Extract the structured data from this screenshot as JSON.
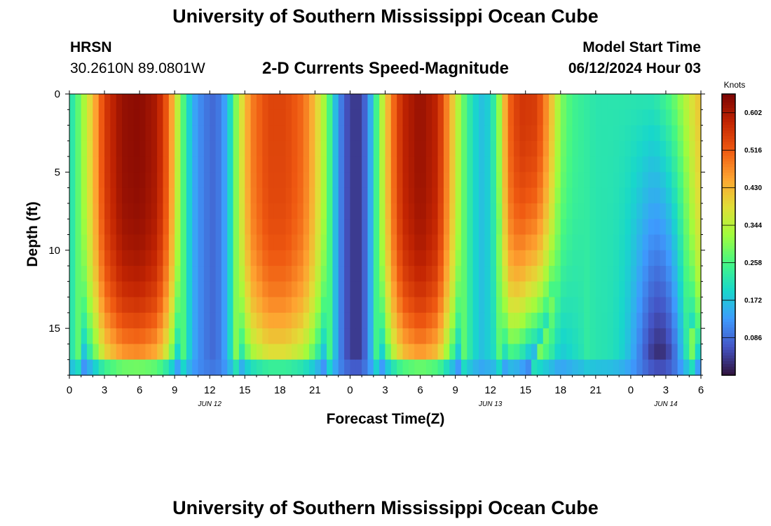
{
  "header": {
    "title": "University of Southern Mississippi Ocean Cube",
    "station": "HRSN",
    "coords": "30.2610N  89.0801W",
    "subtitle": "2-D Currents Speed-Magnitude",
    "model_label": "Model Start Time",
    "model_time": "06/12/2024 Hour 03"
  },
  "footer": {
    "title": "University of Southern Mississippi Ocean Cube"
  },
  "chart_data": {
    "type": "heatmap",
    "title": "2-D Currents Speed-Magnitude",
    "xlabel": "Forecast Time(Z)",
    "ylabel": "Depth (ft)",
    "colorbar_label": "Knots",
    "x_range_hours": [
      0,
      54
    ],
    "x_tick_hours": [
      0,
      3,
      6,
      9,
      12,
      15,
      18,
      21,
      24,
      27,
      30,
      33,
      36,
      39,
      42,
      45,
      48,
      51,
      54
    ],
    "x_tick_labels": [
      "0",
      "3",
      "6",
      "9",
      "12",
      "15",
      "18",
      "21",
      "0",
      "3",
      "6",
      "9",
      "12",
      "15",
      "18",
      "21",
      "0",
      "3",
      "6"
    ],
    "date_labels": [
      {
        "hour": 12,
        "text": "JUN 12"
      },
      {
        "hour": 36,
        "text": "JUN 13"
      },
      {
        "hour": 51,
        "text": "JUN 14"
      }
    ],
    "y_range_ft": [
      0,
      18
    ],
    "y_ticks": [
      0,
      5,
      10,
      15
    ],
    "y_tick_labels": [
      "0",
      "5",
      "10",
      "15"
    ],
    "color_range": [
      0,
      0.645
    ],
    "colorbar_ticks": [
      0.602,
      0.516,
      0.43,
      0.344,
      0.258,
      0.172,
      0.086
    ],
    "colorbar_tick_labels": [
      "0.602",
      "0.516",
      "0.430",
      "0.344",
      "0.258",
      "0.172",
      "0.086"
    ],
    "grid_step_hours": 0.5,
    "depth_levels": 18,
    "surface_speed_profile_knots": [
      [
        0,
        0.2
      ],
      [
        1,
        0.3
      ],
      [
        2,
        0.42
      ],
      [
        3,
        0.55
      ],
      [
        4.5,
        0.62
      ],
      [
        6,
        0.63
      ],
      [
        7.5,
        0.6
      ],
      [
        8.5,
        0.5
      ],
      [
        9.5,
        0.3
      ],
      [
        10.5,
        0.15
      ],
      [
        11.5,
        0.1
      ],
      [
        12.5,
        0.08
      ],
      [
        13.5,
        0.15
      ],
      [
        14.5,
        0.35
      ],
      [
        15.5,
        0.48
      ],
      [
        17,
        0.54
      ],
      [
        18.5,
        0.54
      ],
      [
        20,
        0.5
      ],
      [
        21,
        0.42
      ],
      [
        22,
        0.3
      ],
      [
        23,
        0.12
      ],
      [
        24,
        0.04
      ],
      [
        24.8,
        0.04
      ],
      [
        25.5,
        0.1
      ],
      [
        26.5,
        0.3
      ],
      [
        27.5,
        0.48
      ],
      [
        28.5,
        0.58
      ],
      [
        30,
        0.62
      ],
      [
        31.5,
        0.58
      ],
      [
        32.5,
        0.45
      ],
      [
        33.5,
        0.3
      ],
      [
        34.5,
        0.2
      ],
      [
        35.5,
        0.16
      ],
      [
        36.5,
        0.25
      ],
      [
        37.5,
        0.5
      ],
      [
        38.5,
        0.56
      ],
      [
        40,
        0.55
      ],
      [
        41,
        0.45
      ],
      [
        42,
        0.3
      ],
      [
        43,
        0.25
      ],
      [
        45,
        0.22
      ],
      [
        48,
        0.22
      ],
      [
        50,
        0.22
      ],
      [
        51.5,
        0.27
      ],
      [
        52.5,
        0.33
      ],
      [
        53.5,
        0.4
      ],
      [
        54,
        0.42
      ]
    ]
  }
}
